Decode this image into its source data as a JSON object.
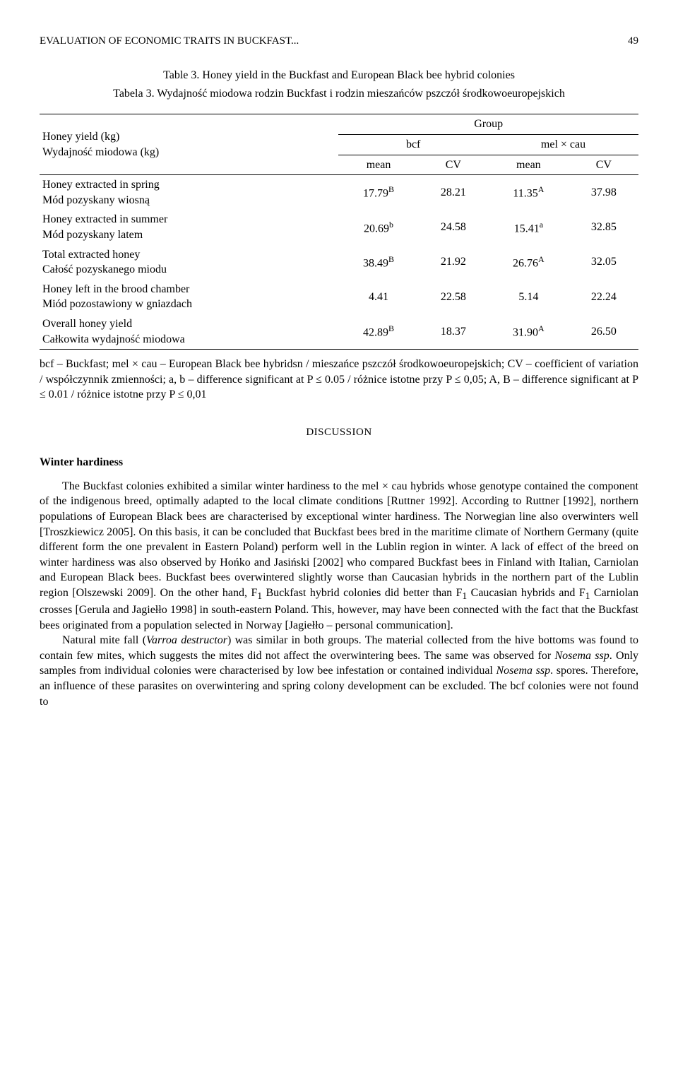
{
  "running_head": {
    "title": "EVALUATION OF ECONOMIC TRAITS IN BUCKFAST...",
    "page": "49"
  },
  "table3": {
    "caption_en": "Table 3. Honey yield in the Buckfast and European Black bee hybrid colonies",
    "caption_pl": "Tabela 3. Wydajność miodowa rodzin Buckfast i rodzin mieszańców pszczół środkowoeuropejskich",
    "header": {
      "rowlabel_en": "Honey yield (kg)",
      "rowlabel_pl": "Wydajność miodowa (kg)",
      "group": "Group",
      "bcf": "bcf",
      "melcau": "mel × cau",
      "mean": "mean",
      "cv": "CV"
    },
    "rows": [
      {
        "label_en": "Honey extracted in spring",
        "label_pl": "Mód pozyskany wiosną",
        "bcf_mean": "17.79",
        "bcf_mean_sup": "B",
        "bcf_cv": "28.21",
        "mel_mean": "11.35",
        "mel_mean_sup": "A",
        "mel_cv": "37.98"
      },
      {
        "label_en": "Honey extracted in summer",
        "label_pl": "Mód pozyskany latem",
        "bcf_mean": "20.69",
        "bcf_mean_sup": "b",
        "bcf_cv": "24.58",
        "mel_mean": "15.41",
        "mel_mean_sup": "a",
        "mel_cv": "32.85"
      },
      {
        "label_en": "Total extracted honey",
        "label_pl": "Całość pozyskanego miodu",
        "bcf_mean": "38.49",
        "bcf_mean_sup": "B",
        "bcf_cv": "21.92",
        "mel_mean": "26.76",
        "mel_mean_sup": "A",
        "mel_cv": "32.05"
      },
      {
        "label_en": "Honey left in the brood chamber",
        "label_pl": "Miód pozostawiony w gniazdach",
        "bcf_mean": "4.41",
        "bcf_mean_sup": "",
        "bcf_cv": "22.58",
        "mel_mean": "5.14",
        "mel_mean_sup": "",
        "mel_cv": "22.24"
      },
      {
        "label_en": "Overall honey yield",
        "label_pl": "Całkowita wydajność miodowa",
        "bcf_mean": "42.89",
        "bcf_mean_sup": "B",
        "bcf_cv": "18.37",
        "mel_mean": "31.90",
        "mel_mean_sup": "A",
        "mel_cv": "26.50"
      }
    ],
    "footnote": "bcf – Buckfast; mel × cau – European Black bee hybridsn / mieszańce pszczół środkowoeuropejskich; CV – coefficient of variation / współczynnik zmienności; a, b – difference significant at P ≤ 0.05 / różnice istotne przy P ≤ 0,05; A, B – difference significant at P ≤ 0.01 / różnice istotne przy P ≤ 0,01"
  },
  "discussion_heading": "DISCUSSION",
  "subheading": "Winter hardiness",
  "para1_html": "The Buckfast colonies exhibited a similar winter hardiness to the mel × cau hybrids whose genotype contained the component of the indigenous breed, optimally adapted to the local climate conditions [Ruttner 1992]. According to Ruttner [1992], northern populations of European Black bees are characterised by exceptional winter hardiness. The Norwegian line also overwinters well [Troszkiewicz 2005]. On this basis, it can be concluded that Buckfast bees bred in the maritime climate of Northern Germany (quite different form the one prevalent in Eastern Poland) perform well in the Lublin region in winter. A lack of effect of the breed on winter hardiness was also observed by Hońko and Jasiński [2002] who compared Buckfast bees in Finland with Italian, Carniolan and European Black bees. Buckfast bees overwintered slightly worse than Caucasian hybrids in the northern part of the Lublin region [Olszewski 2009]. On the other hand, F<sub>1</sub> Buckfast hybrid colonies did better than F<sub>1</sub> Caucasian hybrids and F<sub>1</sub> Carniolan crosses [Gerula and Jagiełło 1998] in south-eastern Poland. This, however, may have been connected with the fact that the Buckfast bees originated from a population selected in Norway [Jagiełło – personal communication].",
  "para2_html": "Natural mite fall (<span class=\"italic\">Varroa destructor</span>) was similar in both groups. The material collected from the hive bottoms was found to contain few mites, which suggests the mites did not affect the overwintering bees. The same was observed for <span class=\"italic\">Nosema ssp</span>. Only samples from individual colonies were characterised by low bee infestation or contained individual <span class=\"italic\">Nosema ssp</span>. spores. Therefore, an influence of these parasites on overwintering and spring colony development can be excluded. The bcf colonies were not found to"
}
